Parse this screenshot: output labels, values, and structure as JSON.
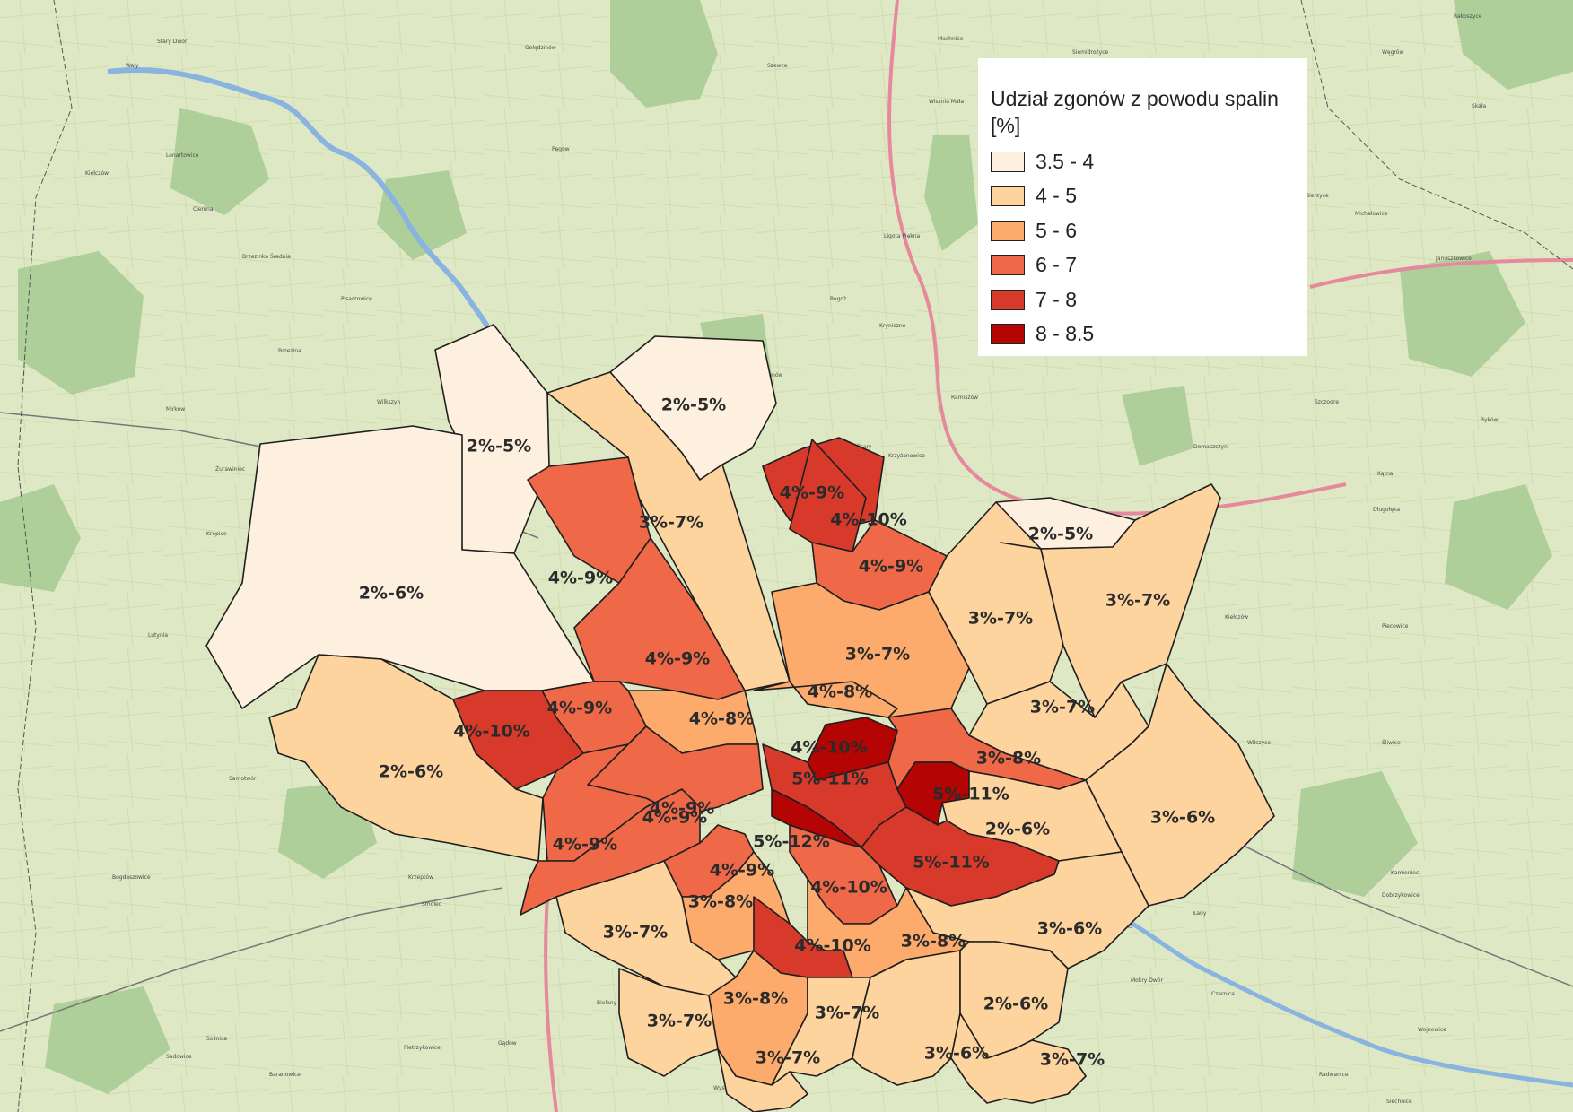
{
  "legend": {
    "title": "Udział zgonów z powodu spalin [%]",
    "items": [
      {
        "label": "3.5 - 4",
        "color": "#fef0df"
      },
      {
        "label": "4 - 5",
        "color": "#fdd49e"
      },
      {
        "label": "5 - 6",
        "color": "#fdab6d"
      },
      {
        "label": "6 - 7",
        "color": "#ef6848"
      },
      {
        "label": "7 - 8",
        "color": "#d7392b"
      },
      {
        "label": "8 - 8.5",
        "color": "#b40404"
      }
    ]
  },
  "districts": [
    {
      "label": "2%-5%",
      "class": "3.5 - 4"
    },
    {
      "label": "2%-5%",
      "class": "3.5 - 4"
    },
    {
      "label": "2%-6%",
      "class": "3.5 - 4"
    },
    {
      "label": "2%-5%",
      "class": "3.5 - 4"
    },
    {
      "label": "3%-7%",
      "class": "4 - 5"
    },
    {
      "label": "4%-9%",
      "class": "7 - 8"
    },
    {
      "label": "4%-10%",
      "class": "7 - 8"
    },
    {
      "label": "4%-9%",
      "class": "6 - 7"
    },
    {
      "label": "4%-9%",
      "class": "6 - 7"
    },
    {
      "label": "4%-9%",
      "class": "6 - 7"
    },
    {
      "label": "3%-7%",
      "class": "5 - 6"
    },
    {
      "label": "3%-7%",
      "class": "4 - 5"
    },
    {
      "label": "3%-7%",
      "class": "4 - 5"
    },
    {
      "label": "4%-8%",
      "class": "5 - 6"
    },
    {
      "label": "4%-8%",
      "class": "5 - 6"
    },
    {
      "label": "4%-9%",
      "class": "6 - 7"
    },
    {
      "label": "4%-10%",
      "class": "7 - 8"
    },
    {
      "label": "2%-6%",
      "class": "4 - 5"
    },
    {
      "label": "4%-10%",
      "class": "8 - 8.5"
    },
    {
      "label": "5%-11%",
      "class": "7 - 8"
    },
    {
      "label": "3%-8%",
      "class": "6 - 7"
    },
    {
      "label": "5%-11%",
      "class": "8 - 8.5"
    },
    {
      "label": "3%-7%",
      "class": "4 - 5"
    },
    {
      "label": "2%-6%",
      "class": "4 - 5"
    },
    {
      "label": "3%-6%",
      "class": "4 - 5"
    },
    {
      "label": "4%-9%",
      "class": "6 - 7"
    },
    {
      "label": "4%-9%",
      "class": "6 - 7"
    },
    {
      "label": "4%-9%",
      "class": "6 - 7"
    },
    {
      "label": "5%-12%",
      "class": "8 - 8.5"
    },
    {
      "label": "5%-11%",
      "class": "7 - 8"
    },
    {
      "label": "4%-9%",
      "class": "6 - 7"
    },
    {
      "label": "4%-10%",
      "class": "6 - 7"
    },
    {
      "label": "3%-8%",
      "class": "5 - 6"
    },
    {
      "label": "4%-10%",
      "class": "7 - 8"
    },
    {
      "label": "3%-8%",
      "class": "5 - 6"
    },
    {
      "label": "3%-7%",
      "class": "4 - 5"
    },
    {
      "label": "3%-6%",
      "class": "4 - 5"
    },
    {
      "label": "3%-8%",
      "class": "5 - 6"
    },
    {
      "label": "3%-7%",
      "class": "4 - 5"
    },
    {
      "label": "3%-7%",
      "class": "4 - 5"
    },
    {
      "label": "3%-7%",
      "class": "4 - 5"
    },
    {
      "label": "3%-6%",
      "class": "4 - 5"
    },
    {
      "label": "2%-6%",
      "class": "4 - 5"
    },
    {
      "label": "3%-7%",
      "class": "4 - 5"
    }
  ],
  "basemap": {
    "place_names": [
      "Wały",
      "Stary Dwór",
      "Lenartowice",
      "Kiełczów",
      "Cienina",
      "Brzezinka Średnia",
      "Pisarzowice",
      "Brzezina",
      "Mirków",
      "Wilkszyn",
      "Żurawiniec",
      "Krępice",
      "Lutynia",
      "Samotwór",
      "Krzeptów",
      "Smolec",
      "Bogdaszowice",
      "Sadowice",
      "Pietrzykowice",
      "Gądów",
      "Baranowice",
      "Sośnica",
      "Długołęka",
      "Kiełczów",
      "Wilczyce",
      "Kamieniec",
      "Bielany Wrocławskie",
      "Wysoka",
      "Siechnice",
      "Trestno",
      "Radwanice",
      "Mokry Dwór",
      "Czernica",
      "Dobrzykowice",
      "Piecowice",
      "Śliwice",
      "Łany",
      "Kotowice",
      "Wojnowice",
      "Bierzyce",
      "Michałowice",
      "Januszkowice",
      "Byków",
      "Kątna",
      "Skała",
      "Węgrów",
      "Szczodre",
      "Domaszczyn",
      "Psary",
      "Krzyżanowice",
      "Ramiszów",
      "Pęgów",
      "Golędzinów",
      "Szymanów",
      "Wisznia Mała",
      "Ligota Piękna",
      "Kryniczno",
      "Rogoż",
      "Machnice",
      "Szewce",
      "Siemidrożyce",
      "Rakoszyce"
    ]
  }
}
